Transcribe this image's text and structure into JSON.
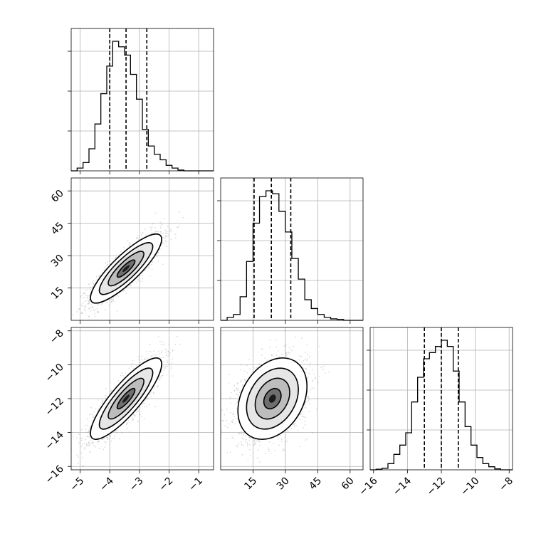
{
  "chart_data": {
    "type": "corner",
    "parameters": [
      {
        "range": [
          -5.3,
          -0.5
        ],
        "ticks": [
          -5,
          -4,
          -3,
          -2,
          -1
        ],
        "tick_labels": [
          "−5",
          "−4",
          "−3",
          "−2",
          "−1"
        ],
        "quantiles": [
          -4.0,
          -3.45,
          -2.75
        ],
        "hist_bins": [
          -5.3,
          -5.1,
          -4.9,
          -4.7,
          -4.5,
          -4.3,
          -4.1,
          -3.9,
          -3.7,
          -3.5,
          -3.3,
          -3.1,
          -2.9,
          -2.7,
          -2.5,
          -2.3,
          -2.1,
          -1.9,
          -1.7,
          -1.5,
          -1.3,
          -1.1,
          -0.9,
          -0.7,
          -0.5
        ],
        "hist_counts": [
          0,
          1,
          3,
          8,
          17,
          28,
          38,
          47,
          45,
          42,
          35,
          26,
          15,
          9,
          6,
          4,
          2,
          1,
          0.3,
          0,
          0,
          0,
          0,
          0
        ]
      },
      {
        "range": [
          0,
          66
        ],
        "ticks": [
          15,
          30,
          45,
          60
        ],
        "tick_labels": [
          "15",
          "30",
          "45",
          "60"
        ],
        "quantiles": [
          15.5,
          23.5,
          32.5
        ],
        "hist_bins": [
          0,
          3,
          6,
          9,
          12,
          15,
          18,
          21,
          24,
          27,
          30,
          33,
          36,
          39,
          42,
          45,
          48,
          51,
          54,
          57,
          60,
          63,
          66
        ],
        "hist_counts": [
          0,
          1,
          2,
          8,
          20,
          33,
          42,
          44,
          43,
          37,
          30,
          21,
          14,
          7,
          4,
          2,
          1,
          0.5,
          0.3,
          0,
          0,
          0
        ]
      },
      {
        "range": [
          -16.2,
          -7.8
        ],
        "ticks": [
          -16,
          -14,
          -12,
          -10,
          -8
        ],
        "tick_labels": [
          "−16",
          "−14",
          "−12",
          "−10",
          "−8"
        ],
        "quantiles": [
          -13.0,
          -12.0,
          -11.0
        ],
        "hist_bins": [
          -16.2,
          -15.85,
          -15.5,
          -15.15,
          -14.8,
          -14.45,
          -14.1,
          -13.75,
          -13.4,
          -13.05,
          -12.7,
          -12.35,
          -12.0,
          -11.65,
          -11.3,
          -10.95,
          -10.6,
          -10.25,
          -9.9,
          -9.55,
          -9.2,
          -8.85,
          -8.5,
          -8.15,
          -7.8
        ],
        "hist_counts": [
          0,
          0.2,
          0.5,
          2,
          5,
          8,
          12,
          22,
          30,
          36,
          38,
          40,
          42,
          40,
          32,
          22,
          14,
          8,
          4,
          2,
          1,
          0.3,
          0,
          0
        ]
      }
    ],
    "pairs": [
      {
        "x": 0,
        "y": 1,
        "center": [
          -3.45,
          24
        ],
        "sigma": [
          0.6,
          8
        ],
        "corr": 0.85
      },
      {
        "x": 0,
        "y": 2,
        "center": [
          -3.45,
          -12
        ],
        "sigma": [
          0.6,
          1.2
        ],
        "corr": 0.85
      },
      {
        "x": 1,
        "y": 2,
        "center": [
          24,
          -12
        ],
        "sigma": [
          8,
          1.2
        ],
        "corr": 0.3
      }
    ],
    "contour_levels_sigma": [
      0.5,
      1.0,
      1.5,
      2.0
    ],
    "grid": true,
    "points_color": "#9a9a9a",
    "line_color": "#000000"
  }
}
